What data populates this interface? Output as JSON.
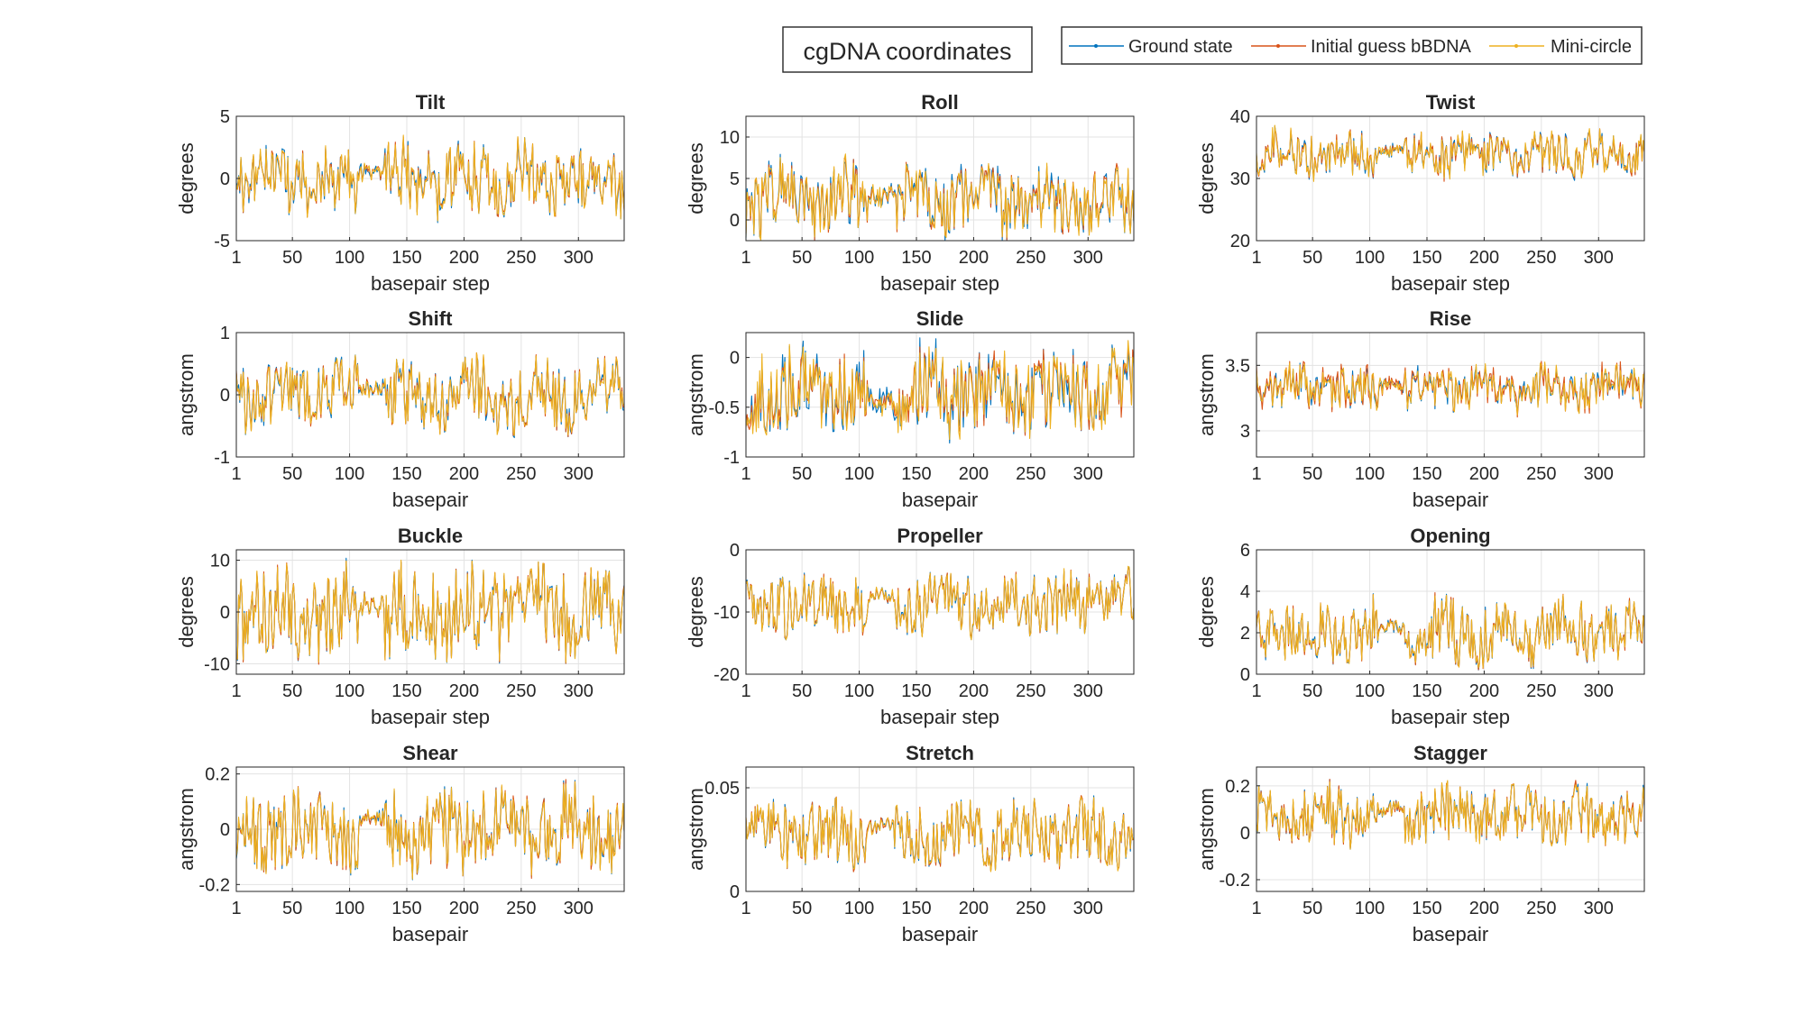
{
  "figure": {
    "title": "cgDNA coordinates",
    "legend": {
      "placement": "top-right",
      "entries": [
        {
          "name": "Ground state",
          "color": "#0072BD"
        },
        {
          "name": "Initial guess bBDNA",
          "color": "#D95319"
        },
        {
          "name": "Mini-circle",
          "color": "#EDB120"
        }
      ]
    }
  },
  "chart_data": [
    {
      "type": "line",
      "title": "Tilt",
      "xlabel": "basepair step",
      "ylabel": "degrees",
      "xlim": [
        1,
        340
      ],
      "ylim": [
        -5,
        5
      ],
      "xticks": [
        1,
        50,
        100,
        150,
        200,
        250,
        300
      ],
      "yticks": [
        -5,
        0,
        5
      ],
      "grid": true,
      "seed": 11,
      "mean": 0,
      "amp": 1.8,
      "noise": 0.6,
      "spread": [
        0.35,
        0.12,
        0.25
      ],
      "series": [
        {
          "name": "Ground state"
        },
        {
          "name": "Initial guess bBDNA"
        },
        {
          "name": "Mini-circle"
        }
      ]
    },
    {
      "type": "line",
      "title": "Roll",
      "xlabel": "basepair step",
      "ylabel": "degrees",
      "xlim": [
        1,
        340
      ],
      "ylim": [
        -2.5,
        12.5
      ],
      "xticks": [
        1,
        50,
        100,
        150,
        200,
        250,
        300
      ],
      "yticks": [
        0,
        5,
        10
      ],
      "grid": true,
      "seed": 23,
      "mean": 2.5,
      "amp": 2.6,
      "noise": 1.0,
      "spread": [
        0.8,
        0.2,
        0.6
      ],
      "series": [
        {
          "name": "Ground state"
        },
        {
          "name": "Initial guess bBDNA"
        },
        {
          "name": "Mini-circle"
        }
      ]
    },
    {
      "type": "line",
      "title": "Twist",
      "xlabel": "basepair step",
      "ylabel": "degrees",
      "xlim": [
        1,
        340
      ],
      "ylim": [
        20,
        40
      ],
      "xticks": [
        1,
        50,
        100,
        150,
        200,
        250,
        300
      ],
      "yticks": [
        20,
        30,
        40
      ],
      "grid": true,
      "seed": 37,
      "mean": 34,
      "amp": 2.2,
      "noise": 0.8,
      "spread": [
        0.5,
        0.3,
        0.6
      ],
      "series": [
        {
          "name": "Ground state"
        },
        {
          "name": "Initial guess bBDNA"
        },
        {
          "name": "Mini-circle"
        }
      ]
    },
    {
      "type": "line",
      "title": "Shift",
      "xlabel": "basepair",
      "ylabel": "angstrom",
      "xlim": [
        1,
        340
      ],
      "ylim": [
        -1,
        1
      ],
      "xticks": [
        1,
        50,
        100,
        150,
        200,
        250,
        300
      ],
      "yticks": [
        -1,
        0,
        1
      ],
      "grid": true,
      "seed": 41,
      "mean": 0,
      "amp": 0.35,
      "noise": 0.12,
      "spread": [
        0.08,
        0.03,
        0.05
      ],
      "series": [
        {
          "name": "Ground state"
        },
        {
          "name": "Initial guess bBDNA"
        },
        {
          "name": "Mini-circle"
        }
      ]
    },
    {
      "type": "line",
      "title": "Slide",
      "xlabel": "basepair",
      "ylabel": "angstrom",
      "xlim": [
        1,
        340
      ],
      "ylim": [
        -1,
        0.25
      ],
      "xticks": [
        1,
        50,
        100,
        150,
        200,
        250,
        300
      ],
      "yticks": [
        -1,
        -0.5,
        0
      ],
      "grid": true,
      "seed": 53,
      "mean": -0.35,
      "amp": 0.25,
      "noise": 0.08,
      "spread": [
        0.12,
        0.03,
        0.1
      ],
      "series": [
        {
          "name": "Ground state"
        },
        {
          "name": "Initial guess bBDNA"
        },
        {
          "name": "Mini-circle"
        }
      ]
    },
    {
      "type": "line",
      "title": "Rise",
      "xlabel": "basepair",
      "ylabel": "angstrom",
      "xlim": [
        1,
        340
      ],
      "ylim": [
        2.8,
        3.75
      ],
      "xticks": [
        1,
        50,
        100,
        150,
        200,
        250,
        300
      ],
      "yticks": [
        3,
        3.5
      ],
      "grid": true,
      "seed": 67,
      "mean": 3.32,
      "amp": 0.1,
      "noise": 0.04,
      "spread": [
        0.03,
        0.06,
        0.03
      ],
      "series": [
        {
          "name": "Ground state"
        },
        {
          "name": "Initial guess bBDNA"
        },
        {
          "name": "Mini-circle"
        }
      ]
    },
    {
      "type": "line",
      "title": "Buckle",
      "xlabel": "basepair step",
      "ylabel": "degrees",
      "xlim": [
        1,
        340
      ],
      "ylim": [
        -12,
        12
      ],
      "xticks": [
        1,
        50,
        100,
        150,
        200,
        250,
        300
      ],
      "yticks": [
        -10,
        0,
        10
      ],
      "grid": true,
      "seed": 79,
      "mean": 0,
      "amp": 5.5,
      "noise": 1.5,
      "spread": [
        0.4,
        0.4,
        0.3
      ],
      "series": [
        {
          "name": "Ground state"
        },
        {
          "name": "Initial guess bBDNA"
        },
        {
          "name": "Mini-circle"
        }
      ]
    },
    {
      "type": "line",
      "title": "Propeller",
      "xlabel": "basepair step",
      "ylabel": "degrees",
      "xlim": [
        1,
        340
      ],
      "ylim": [
        -20,
        0
      ],
      "xticks": [
        1,
        50,
        100,
        150,
        200,
        250,
        300
      ],
      "yticks": [
        -20,
        -10,
        0
      ],
      "grid": true,
      "seed": 83,
      "mean": -8.5,
      "amp": 3.3,
      "noise": 1.0,
      "spread": [
        0.3,
        0.3,
        0.3
      ],
      "series": [
        {
          "name": "Ground state"
        },
        {
          "name": "Initial guess bBDNA"
        },
        {
          "name": "Mini-circle"
        }
      ]
    },
    {
      "type": "line",
      "title": "Opening",
      "xlabel": "basepair step",
      "ylabel": "degrees",
      "xlim": [
        1,
        340
      ],
      "ylim": [
        0,
        6
      ],
      "xticks": [
        1,
        50,
        100,
        150,
        200,
        250,
        300
      ],
      "yticks": [
        0,
        2,
        4,
        6
      ],
      "grid": true,
      "seed": 97,
      "mean": 2.0,
      "amp": 1.0,
      "noise": 0.35,
      "spread": [
        0.1,
        0.1,
        0.1
      ],
      "series": [
        {
          "name": "Ground state"
        },
        {
          "name": "Initial guess bBDNA"
        },
        {
          "name": "Mini-circle"
        }
      ]
    },
    {
      "type": "line",
      "title": "Shear",
      "xlabel": "basepair",
      "ylabel": "angstrom",
      "xlim": [
        1,
        340
      ],
      "ylim": [
        -0.225,
        0.225
      ],
      "xticks": [
        1,
        50,
        100,
        150,
        200,
        250,
        300
      ],
      "yticks": [
        -0.2,
        0,
        0.2
      ],
      "grid": true,
      "seed": 101,
      "mean": 0,
      "amp": 0.1,
      "noise": 0.03,
      "spread": [
        0.01,
        0.01,
        0.01
      ],
      "series": [
        {
          "name": "Ground state"
        },
        {
          "name": "Initial guess bBDNA"
        },
        {
          "name": "Mini-circle"
        }
      ]
    },
    {
      "type": "line",
      "title": "Stretch",
      "xlabel": "basepair",
      "ylabel": "angstrom",
      "xlim": [
        1,
        340
      ],
      "ylim": [
        0,
        0.06
      ],
      "xticks": [
        1,
        50,
        100,
        150,
        200,
        250,
        300
      ],
      "yticks": [
        0,
        0.05
      ],
      "grid": true,
      "seed": 113,
      "mean": 0.028,
      "amp": 0.01,
      "noise": 0.004,
      "spread": [
        0.001,
        0.001,
        0.001
      ],
      "series": [
        {
          "name": "Ground state"
        },
        {
          "name": "Initial guess bBDNA"
        },
        {
          "name": "Mini-circle"
        }
      ]
    },
    {
      "type": "line",
      "title": "Stagger",
      "xlabel": "basepair",
      "ylabel": "angstrom",
      "xlim": [
        1,
        340
      ],
      "ylim": [
        -0.25,
        0.28
      ],
      "xticks": [
        1,
        50,
        100,
        150,
        200,
        250,
        300
      ],
      "yticks": [
        -0.2,
        0,
        0.2
      ],
      "grid": true,
      "seed": 127,
      "mean": 0.07,
      "amp": 0.08,
      "noise": 0.03,
      "spread": [
        0.01,
        0.01,
        0.01
      ],
      "series": [
        {
          "name": "Ground state"
        },
        {
          "name": "Initial guess bBDNA"
        },
        {
          "name": "Mini-circle"
        }
      ]
    }
  ]
}
